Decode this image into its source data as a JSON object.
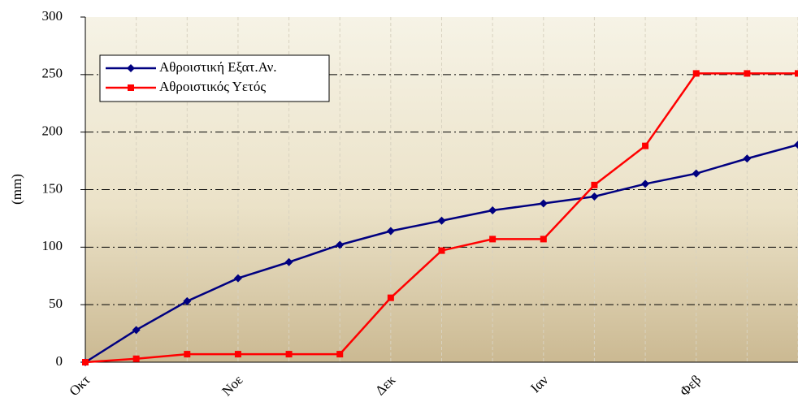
{
  "chart_data": {
    "type": "line",
    "y_label": "(mm)",
    "categories": [
      "Οκτ",
      null,
      null,
      "Νοε",
      null,
      null,
      "Δεκ",
      null,
      null,
      "Ιαν",
      null,
      null,
      "Φεβ",
      null,
      null
    ],
    "series": [
      {
        "name": "Αθροιστική Εξατ.Αν.",
        "color": "#000080",
        "marker": "diamond",
        "values": [
          0,
          28,
          53,
          73,
          87,
          102,
          114,
          123,
          132,
          138,
          144,
          155,
          164,
          177,
          189
        ]
      },
      {
        "name": "Αθροιστικός Υετός",
        "color": "#ff0000",
        "marker": "square",
        "values": [
          0,
          3,
          7,
          7,
          7,
          7,
          56,
          97,
          107,
          107,
          154,
          188,
          251,
          251,
          251
        ]
      }
    ],
    "ylim": [
      0,
      300
    ],
    "yticks": [
      0,
      50,
      100,
      150,
      200,
      250,
      300
    ],
    "grid": true,
    "legend": "upper left"
  }
}
